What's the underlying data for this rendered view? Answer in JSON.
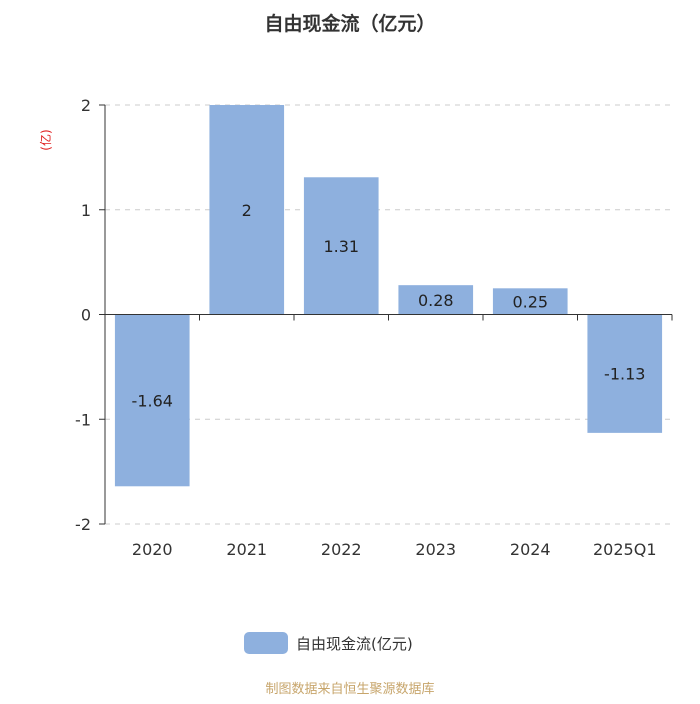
{
  "chart_data": {
    "type": "bar",
    "title": "自由现金流（亿元）",
    "ylabel": "(亿)",
    "categories": [
      "2020",
      "2021",
      "2022",
      "2023",
      "2024",
      "2025Q1"
    ],
    "series": [
      {
        "name": "自由现金流(亿元)",
        "values": [
          -1.64,
          2,
          1.31,
          0.28,
          0.25,
          -1.13
        ]
      }
    ],
    "data_labels": [
      "-1.64",
      "2",
      "1.31",
      "0.28",
      "0.25",
      "-1.13"
    ],
    "ylim": [
      -2,
      2
    ],
    "yticks": [
      "2",
      "1",
      "0",
      "-1",
      "-2"
    ],
    "grid": true,
    "legend_position": "bottom"
  },
  "colors": {
    "bar": "#8eb0de",
    "axis": "#333333",
    "grid": "#cccccc",
    "unit_label": "#e02020",
    "source": "#c7a56b"
  },
  "footer": {
    "source": "制图数据来自恒生聚源数据库"
  }
}
